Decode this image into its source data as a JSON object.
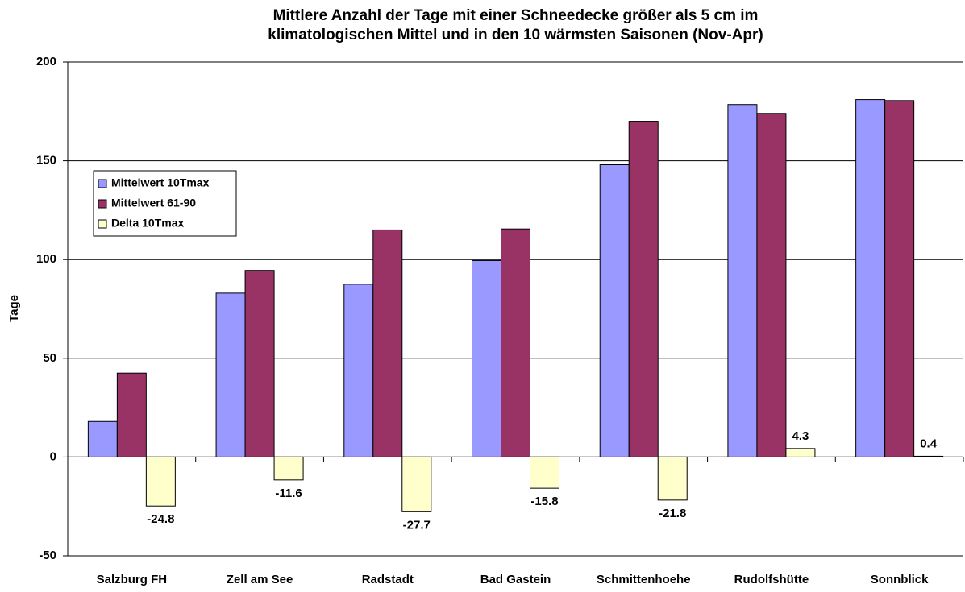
{
  "chart_data": {
    "type": "bar",
    "title": "Mittlere Anzahl der Tage mit einer Schneedecke größer als 5 cm im\nklimatologischen Mittel und in den 10 wärmsten Saisonen (Nov-Apr)",
    "y_label": "Tage",
    "categories": [
      "Salzburg FH",
      "Zell am See",
      "Radstadt",
      "Bad Gastein",
      "Schmittenhoehe",
      "Rudolfshütte",
      "Sonnblick"
    ],
    "series": [
      {
        "name": "Mittelwert 10Tmax",
        "color": "#9999ff",
        "values": [
          18,
          83,
          87.5,
          99.5,
          148,
          178.5,
          181
        ]
      },
      {
        "name": "Mittelwert 61-90",
        "color": "#993366",
        "values": [
          42.5,
          94.5,
          115,
          115.5,
          170,
          174,
          180.5
        ]
      },
      {
        "name": "Delta 10Tmax",
        "color": "#ffffcc",
        "values": [
          -24.8,
          -11.6,
          -27.7,
          -15.8,
          -21.8,
          4.3,
          0.4
        ]
      }
    ],
    "labeled_series": 2,
    "ylim": [
      -50,
      200
    ],
    "yticks": [
      -50,
      0,
      50,
      100,
      150,
      200
    ],
    "grid": true,
    "legend": "upper left"
  }
}
